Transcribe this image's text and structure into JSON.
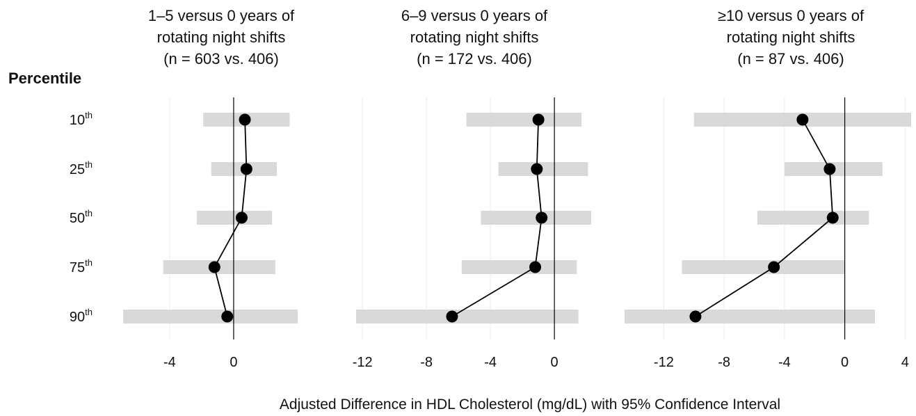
{
  "chart_data": {
    "type": "forest",
    "ylabel": "Percentile",
    "xlabel": "Adjusted Difference in HDL Cholesterol (mg/dL) with 95% Confidence Interval",
    "rows": [
      {
        "base": "10",
        "suffix": "th"
      },
      {
        "base": "25",
        "suffix": "th"
      },
      {
        "base": "50",
        "suffix": "th"
      },
      {
        "base": "75",
        "suffix": "th"
      },
      {
        "base": "90",
        "suffix": "th"
      }
    ],
    "colors": {
      "ci_bar": "#d9d9d9",
      "point": "#000000",
      "line": "#000000",
      "grid": "#ececec"
    },
    "panels": [
      {
        "title": [
          "1–5 versus 0 years of",
          "rotating night shifts",
          "(n = 603 vs. 406)"
        ],
        "xlim": [
          -6.95,
          4.0
        ],
        "ticks": [
          -4,
          0
        ],
        "estimates": [
          0.7,
          0.8,
          0.5,
          -1.2,
          -0.4
        ],
        "ci_low": [
          -1.9,
          -1.4,
          -2.3,
          -4.4,
          -6.9
        ],
        "ci_high": [
          3.5,
          2.7,
          2.4,
          2.6,
          4.0
        ]
      },
      {
        "title": [
          "6–9 versus 0 years of",
          "rotating night shifts",
          "(n = 172 vs. 406)"
        ],
        "xlim": [
          -12.4,
          2.3
        ],
        "ticks": [
          -12,
          -8,
          -4,
          0
        ],
        "estimates": [
          -1.0,
          -1.1,
          -0.8,
          -1.2,
          -6.4
        ],
        "ci_low": [
          -5.5,
          -3.5,
          -4.6,
          -5.8,
          -12.4
        ],
        "ci_high": [
          1.7,
          2.1,
          2.3,
          1.4,
          1.5
        ]
      },
      {
        "title": [
          "≥10 versus 0 years of",
          "rotating night shifts",
          "(n = 87 vs. 406)"
        ],
        "xlim": [
          -14.6,
          4.4
        ],
        "ticks": [
          -12,
          -8,
          -4,
          0,
          4
        ],
        "estimates": [
          -2.8,
          -1.0,
          -0.8,
          -4.7,
          -9.9
        ],
        "ci_low": [
          -10.0,
          -4.0,
          -5.8,
          -10.8,
          -14.6
        ],
        "ci_high": [
          4.4,
          2.5,
          1.6,
          0.0,
          2.0
        ]
      }
    ]
  }
}
